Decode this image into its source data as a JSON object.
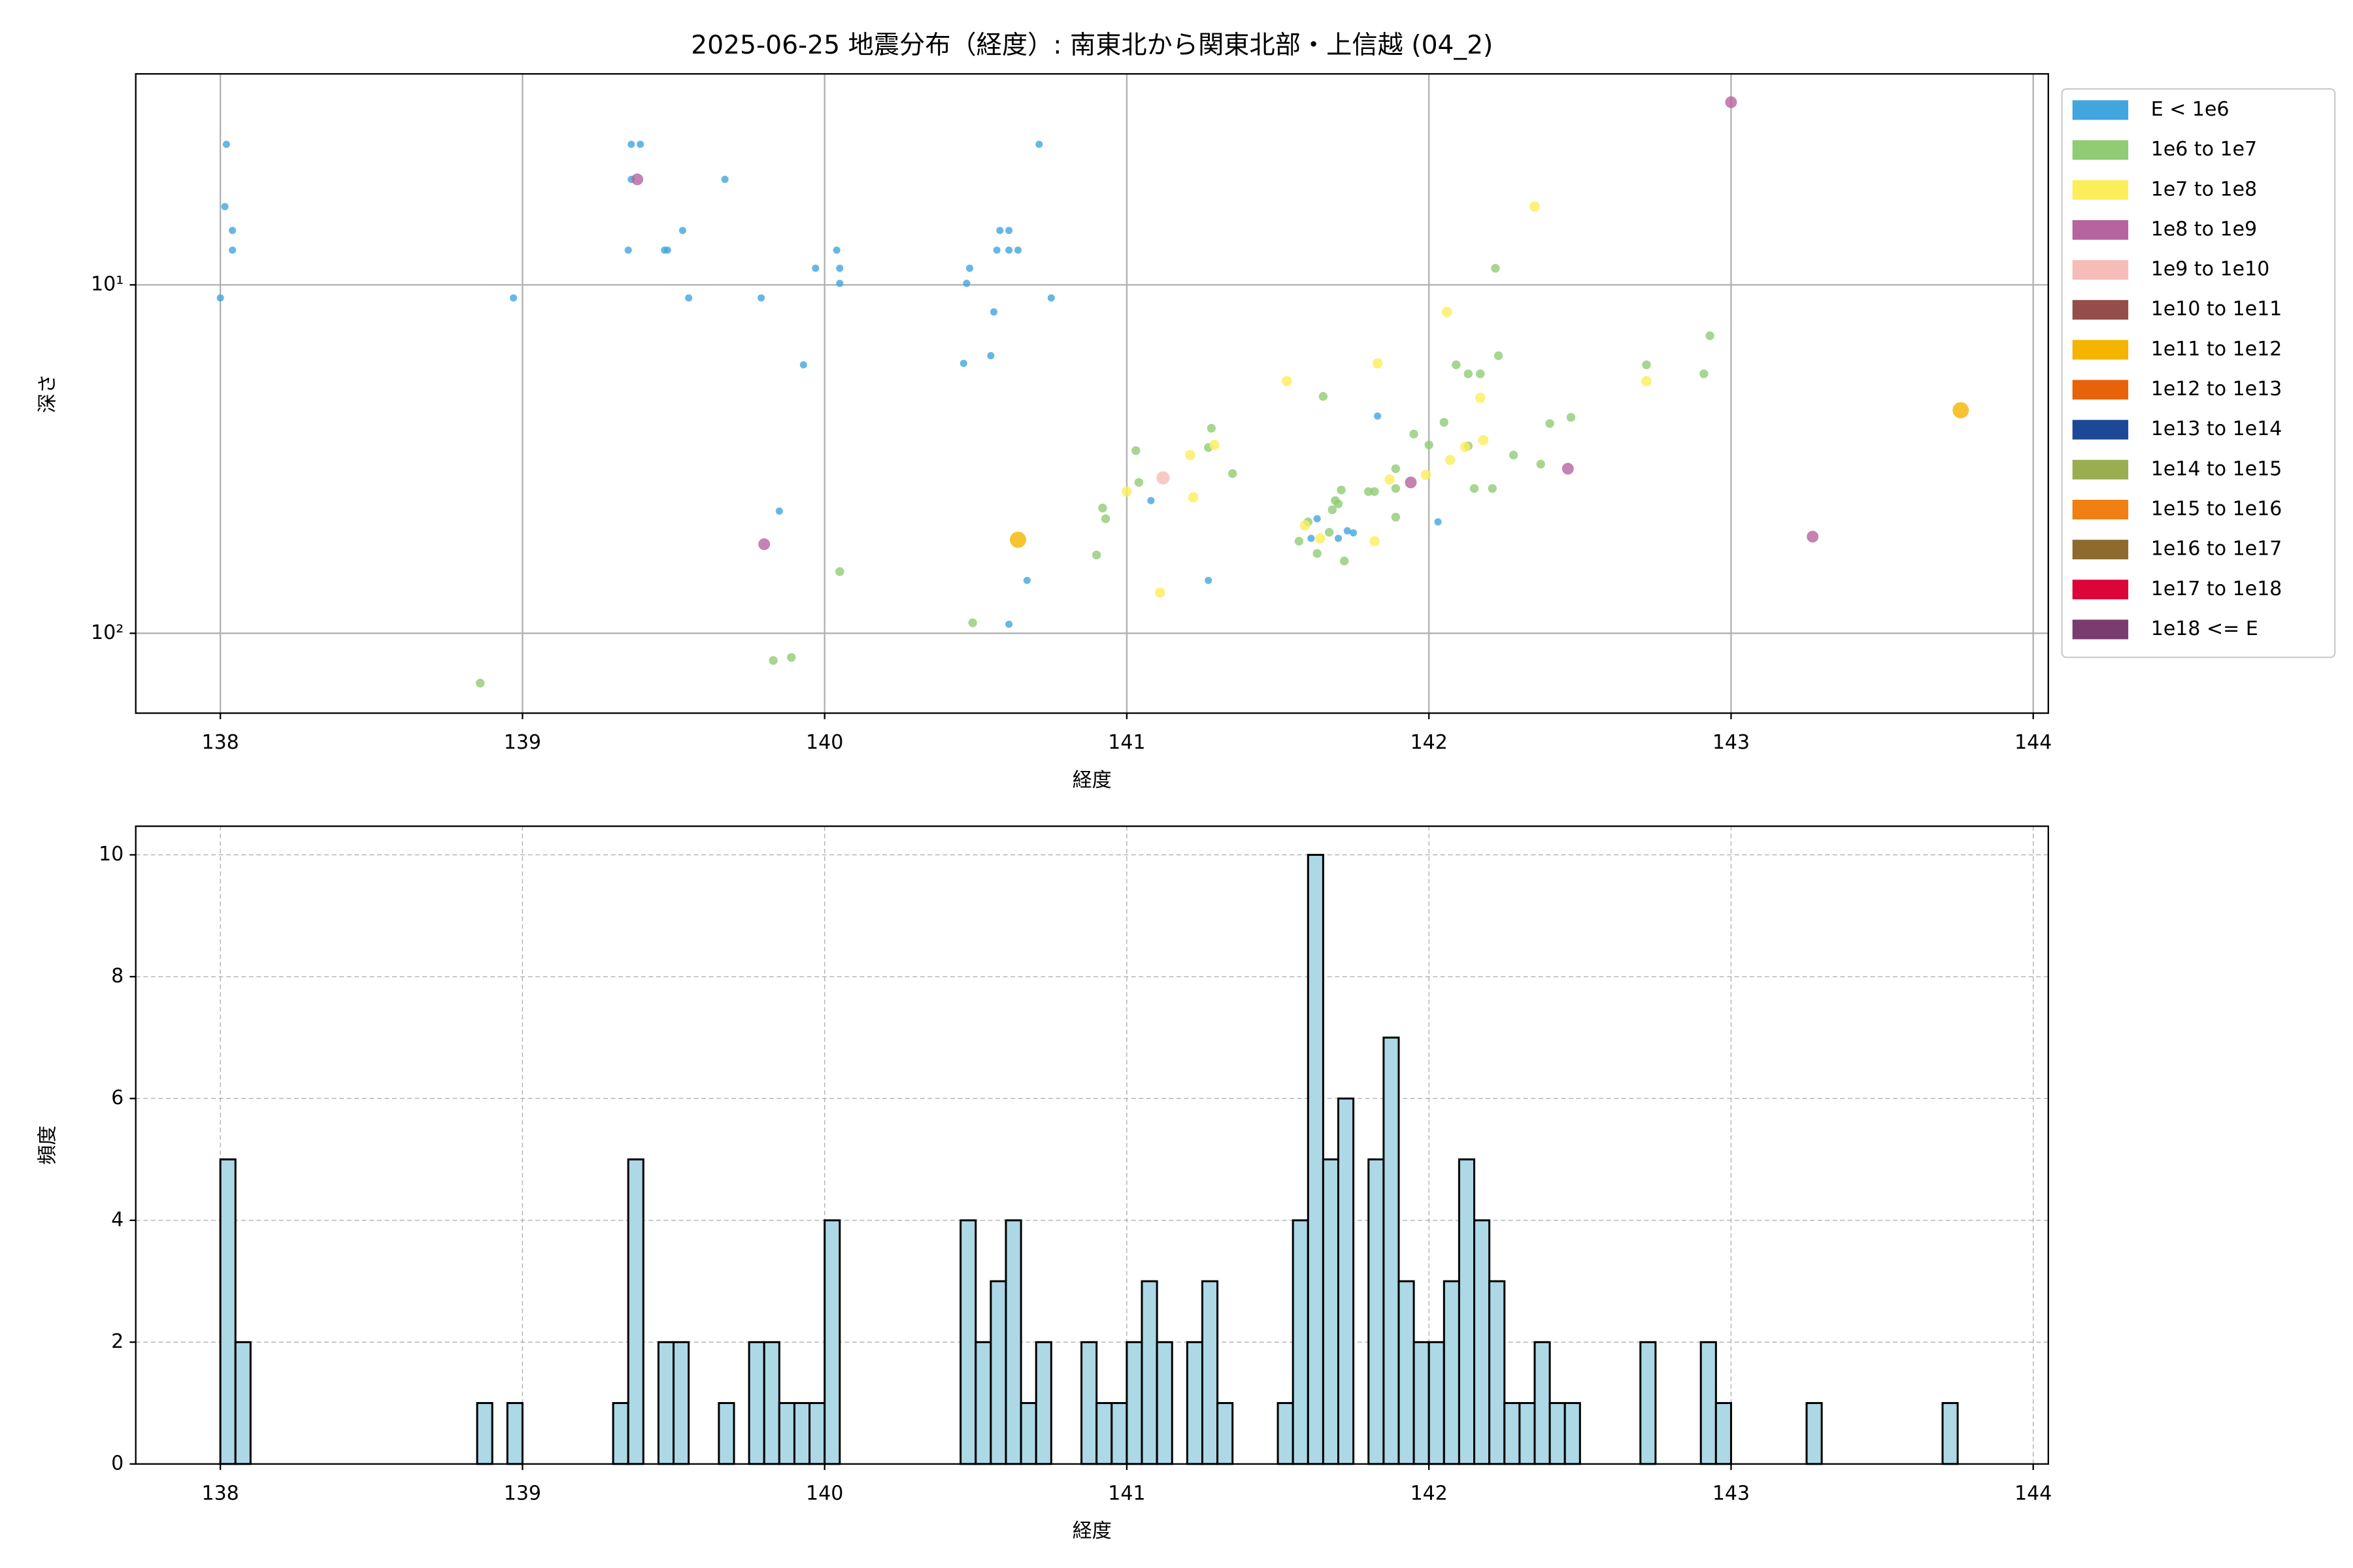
{
  "chart_data": [
    {
      "type": "scatter",
      "title": "2025-06-25 地震分布（経度）: 南東北から関東北部・上信越 (04_2)",
      "xlabel": "経度",
      "ylabel": "深さ",
      "xlim": [
        137.72,
        144.05
      ],
      "xticks": [
        138,
        139,
        140,
        141,
        142,
        143,
        144
      ],
      "ylim": [
        169.5,
        2.48
      ],
      "y_scale": "log",
      "yticks": [
        {
          "value": 10,
          "label": "10¹"
        },
        {
          "value": 100,
          "label": "10²"
        }
      ],
      "grid": true,
      "legend": "outside upper right",
      "series": [
        {
          "name": "E < 1e6",
          "color": "#41a5df",
          "x": [
            138.0,
            138.02,
            138.015,
            138.04,
            138.04,
            138.97,
            139.36,
            139.39,
            139.36,
            139.35,
            139.47,
            139.48,
            139.53,
            139.55,
            139.67,
            139.79,
            139.85,
            139.93,
            139.97,
            140.04,
            140.05,
            140.05,
            140.48,
            140.47,
            140.46,
            140.56,
            140.55,
            140.57,
            140.58,
            140.61,
            140.61,
            140.64,
            140.71,
            140.75,
            140.67,
            140.61,
            141.27,
            141.08,
            141.61,
            141.63,
            141.7,
            141.73,
            141.75,
            141.83,
            142.03
          ],
          "values": [
            10.9,
            3.95,
            5.96,
            6.98,
            7.95,
            10.9,
            3.95,
            3.95,
            4.98,
            7.95,
            7.95,
            7.95,
            6.98,
            10.9,
            4.98,
            10.9,
            44.6,
            16.96,
            8.96,
            7.95,
            8.96,
            9.9,
            8.96,
            9.9,
            16.8,
            11.96,
            15.97,
            7.95,
            6.98,
            6.98,
            7.95,
            7.95,
            3.95,
            10.9,
            70.5,
            94.2,
            70.5,
            41.6,
            53.4,
            46.9,
            53.4,
            50.8,
            51.5,
            23.8,
            47.9
          ]
        },
        {
          "name": "1e6 to 1e7",
          "color": "#90cc74",
          "x": [
            140.05,
            140.49,
            139.83,
            139.89,
            138.86,
            141.03,
            141.04,
            140.92,
            140.93,
            140.9,
            141.28,
            141.27,
            141.35,
            141.65,
            141.57,
            141.6,
            141.63,
            141.67,
            141.68,
            141.69,
            141.7,
            141.71,
            141.72,
            141.8,
            141.82,
            141.89,
            141.89,
            141.89,
            141.95,
            142.0,
            142.05,
            142.09,
            142.13,
            142.17,
            142.23,
            142.22,
            142.13,
            142.15,
            142.21,
            142.28,
            142.37,
            142.4,
            142.47,
            142.72,
            142.91,
            142.93
          ],
          "values": [
            66.5,
            93.3,
            119.7,
            117.3,
            139,
            29.9,
            36.9,
            43.7,
            46.9,
            59.6,
            25.8,
            29.3,
            34.8,
            20.9,
            54.4,
            47.9,
            59,
            51.3,
            44.2,
            41.6,
            42.5,
            38.8,
            62,
            39.2,
            39.2,
            33.7,
            38.4,
            46.4,
            26.8,
            28.8,
            24.8,
            16.96,
            18,
            18,
            15.97,
            8.96,
            29,
            38.4,
            38.4,
            30.8,
            32.7,
            25,
            24,
            16.96,
            18,
            14
          ]
        },
        {
          "name": "1e7 to 1e8",
          "color": "#fced5b",
          "x": [
            141.53,
            142.06,
            142.35,
            141.83,
            142.17,
            142.18,
            142.12,
            142.07,
            141.99,
            141.87,
            141.29,
            141.21,
            141.22,
            141.0,
            141.11,
            141.59,
            141.64,
            141.82,
            142.72
          ],
          "values": [
            18.9,
            11.96,
            5.96,
            16.8,
            21.1,
            27.9,
            29.2,
            31.8,
            35.1,
            36.2,
            28.8,
            30.8,
            40.7,
            39.2,
            76.4,
            49,
            53.4,
            54.4,
            18.9
          ]
        },
        {
          "name": "1e8 to 1e9",
          "color": "#b7639f",
          "x": [
            143.0,
            139.38,
            139.8,
            141.94,
            142.46,
            143.27
          ],
          "values": [
            2.99,
            4.98,
            55.5,
            36.9,
            33.7,
            52.8
          ]
        },
        {
          "name": "1e9 to 1e10",
          "color": "#f6bdb8",
          "x": [
            141.12
          ],
          "values": [
            35.8
          ]
        },
        {
          "name": "1e10 to 1e11",
          "color": "#944d48",
          "x": [],
          "values": []
        },
        {
          "name": "1e11 to 1e12",
          "color": "#f4b400",
          "x": [
            140.64,
            143.76
          ],
          "values": [
            53.9,
            22.9
          ]
        },
        {
          "name": "1e12 to 1e13",
          "color": "#e8620a",
          "x": [],
          "values": []
        },
        {
          "name": "1e13 to 1e14",
          "color": "#1d4897",
          "x": [],
          "values": []
        },
        {
          "name": "1e14 to 1e15",
          "color": "#9aad50",
          "x": [],
          "values": []
        },
        {
          "name": "1e15 to 1e16",
          "color": "#f07f14",
          "x": [],
          "values": []
        },
        {
          "name": "1e16 to 1e17",
          "color": "#8f6a2f",
          "x": [],
          "values": []
        },
        {
          "name": "1e17 to 1e18",
          "color": "#dc0537",
          "x": [],
          "values": []
        },
        {
          "name": "1e18 <= E",
          "color": "#7a3c6f",
          "x": [],
          "values": []
        }
      ]
    },
    {
      "type": "histogram",
      "xlabel": "経度",
      "ylabel": "頻度",
      "xlim": [
        137.72,
        144.05
      ],
      "xticks": [
        138,
        139,
        140,
        141,
        142,
        143,
        144
      ],
      "ylim": [
        0,
        10.47
      ],
      "yticks": [
        0,
        2,
        4,
        6,
        8,
        10
      ],
      "grid": true,
      "grid_style": "dashed",
      "color": "#add8e6",
      "edgecolor": "#000000",
      "bins": [
        138.0,
        138.05,
        138.1,
        138.15,
        138.2,
        138.25,
        138.3,
        138.35,
        138.4,
        138.45,
        138.5,
        138.55,
        138.6,
        138.65,
        138.7,
        138.75,
        138.8,
        138.85,
        138.9,
        138.95,
        139.0,
        139.05,
        139.1,
        139.15,
        139.2,
        139.25,
        139.3,
        139.35,
        139.4,
        139.45,
        139.5,
        139.55,
        139.6,
        139.65,
        139.7,
        139.75,
        139.8,
        139.85,
        139.9,
        139.95,
        140.0,
        140.05,
        140.1,
        140.15,
        140.2,
        140.25,
        140.3,
        140.35,
        140.4,
        140.45,
        140.5,
        140.55,
        140.6,
        140.65,
        140.7,
        140.75,
        140.8,
        140.85,
        140.9,
        140.95,
        141.0,
        141.05,
        141.1,
        141.15,
        141.2,
        141.25,
        141.3,
        141.35,
        141.4,
        141.45,
        141.5,
        141.55,
        141.6,
        141.65,
        141.7,
        141.75,
        141.8,
        141.85,
        141.9,
        141.95,
        142.0,
        142.05,
        142.1,
        142.15,
        142.2,
        142.25,
        142.3,
        142.35,
        142.4,
        142.45,
        142.5,
        142.55,
        142.6,
        142.65,
        142.7,
        142.75,
        142.8,
        142.85,
        142.9,
        142.95,
        143.0,
        143.05,
        143.1,
        143.15,
        143.2,
        143.25,
        143.3,
        143.35,
        143.4,
        143.45,
        143.5,
        143.55,
        143.6,
        143.65,
        143.7,
        143.75
      ],
      "values": [
        5,
        2,
        0,
        0,
        0,
        0,
        0,
        0,
        0,
        0,
        0,
        0,
        0,
        0,
        0,
        0,
        0,
        1,
        0,
        1,
        0,
        0,
        0,
        0,
        0,
        0,
        1,
        5,
        0,
        2,
        2,
        0,
        0,
        1,
        0,
        2,
        2,
        1,
        1,
        1,
        4,
        0,
        0,
        0,
        0,
        0,
        0,
        0,
        0,
        4,
        2,
        3,
        4,
        1,
        2,
        0,
        0,
        2,
        1,
        1,
        2,
        3,
        2,
        0,
        2,
        3,
        1,
        0,
        0,
        0,
        1,
        4,
        10,
        5,
        6,
        0,
        5,
        7,
        3,
        2,
        2,
        3,
        5,
        4,
        3,
        1,
        1,
        2,
        1,
        1,
        0,
        0,
        0,
        0,
        2,
        0,
        0,
        0,
        2,
        1,
        0,
        0,
        0,
        0,
        0,
        1,
        0,
        0,
        0,
        0,
        0,
        0,
        0,
        0,
        1
      ]
    }
  ]
}
